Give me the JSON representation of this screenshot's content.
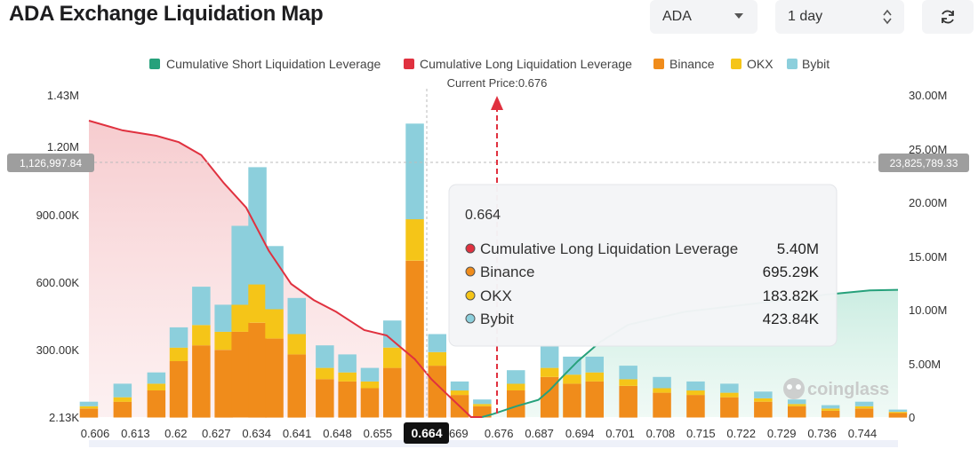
{
  "header": {
    "title": "ADA Exchange Liquidation Map",
    "coin_select": "ADA",
    "range_select": "1 day"
  },
  "colors": {
    "short": "#26a17b",
    "long": "#e0313f",
    "binance": "#f08c1b",
    "okx": "#f5c518",
    "bybit": "#8ccfdc"
  },
  "legend": {
    "short": "Cumulative Short Liquidation Leverage",
    "long": "Cumulative Long Liquidation Leverage",
    "binance": "Binance",
    "okx": "OKX",
    "bybit": "Bybit"
  },
  "current_price_label": "Current Price:0.676",
  "crosshair": {
    "left_value": "1,126,997.84",
    "right_value": "23,825,789.33",
    "x_value": "0.664"
  },
  "tooltip": {
    "title": "0.664",
    "rows": [
      {
        "label": "Cumulative Long Liquidation Leverage",
        "value": "5.40M",
        "color": "#e0313f"
      },
      {
        "label": "Binance",
        "value": "695.29K",
        "color": "#f08c1b"
      },
      {
        "label": "OKX",
        "value": "183.82K",
        "color": "#f5c518"
      },
      {
        "label": "Bybit",
        "value": "423.84K",
        "color": "#8ccfdc"
      }
    ]
  },
  "watermark": "coinglass",
  "chart_data": {
    "type": "bar",
    "x_range": [
      0.606,
      0.75
    ],
    "x_tick_labels": [
      "0.606",
      "0.613",
      "0.62",
      "0.627",
      "0.634",
      "0.641",
      "0.648",
      "0.655",
      "0.664",
      "669",
      "0.676",
      "0.687",
      "0.694",
      "0.701",
      "0.708",
      "0.715",
      "0.722",
      "0.729",
      "0.736",
      "0.744"
    ],
    "y_left_ticks": [
      "1.43M",
      "1.20M",
      "900.00K",
      "600.00K",
      "300.00K",
      "2.13K"
    ],
    "y_left_range": [
      2130,
      1430000
    ],
    "y_right_ticks": [
      "30.00M",
      "25.00M",
      "20.00M",
      "15.00M",
      "10.00M",
      "5.00M",
      "0"
    ],
    "y_right_range": [
      0,
      30000000
    ],
    "current_price": 0.676,
    "bar_stack_points": [
      {
        "x": 0.606,
        "binance": 40000,
        "okx": 10000,
        "bybit": 20000
      },
      {
        "x": 0.612,
        "binance": 70000,
        "okx": 20000,
        "bybit": 60000
      },
      {
        "x": 0.618,
        "binance": 120000,
        "okx": 30000,
        "bybit": 50000
      },
      {
        "x": 0.622,
        "binance": 250000,
        "okx": 60000,
        "bybit": 90000
      },
      {
        "x": 0.626,
        "binance": 320000,
        "okx": 90000,
        "bybit": 170000
      },
      {
        "x": 0.63,
        "binance": 300000,
        "okx": 80000,
        "bybit": 120000
      },
      {
        "x": 0.633,
        "binance": 380000,
        "okx": 120000,
        "bybit": 350000
      },
      {
        "x": 0.636,
        "binance": 420000,
        "okx": 170000,
        "bybit": 520000
      },
      {
        "x": 0.639,
        "binance": 350000,
        "okx": 130000,
        "bybit": 280000
      },
      {
        "x": 0.643,
        "binance": 280000,
        "okx": 90000,
        "bybit": 160000
      },
      {
        "x": 0.648,
        "binance": 170000,
        "okx": 50000,
        "bybit": 100000
      },
      {
        "x": 0.652,
        "binance": 160000,
        "okx": 40000,
        "bybit": 80000
      },
      {
        "x": 0.656,
        "binance": 130000,
        "okx": 30000,
        "bybit": 60000
      },
      {
        "x": 0.66,
        "binance": 220000,
        "okx": 90000,
        "bybit": 120000
      },
      {
        "x": 0.664,
        "binance": 695290,
        "okx": 183820,
        "bybit": 423840
      },
      {
        "x": 0.668,
        "binance": 230000,
        "okx": 60000,
        "bybit": 80000
      },
      {
        "x": 0.672,
        "binance": 100000,
        "okx": 20000,
        "bybit": 40000
      },
      {
        "x": 0.676,
        "binance": 50000,
        "okx": 10000,
        "bybit": 20000
      },
      {
        "x": 0.682,
        "binance": 120000,
        "okx": 30000,
        "bybit": 60000
      },
      {
        "x": 0.688,
        "binance": 180000,
        "okx": 40000,
        "bybit": 100000
      },
      {
        "x": 0.692,
        "binance": 150000,
        "okx": 40000,
        "bybit": 80000
      },
      {
        "x": 0.696,
        "binance": 160000,
        "okx": 40000,
        "bybit": 70000
      },
      {
        "x": 0.702,
        "binance": 140000,
        "okx": 30000,
        "bybit": 60000
      },
      {
        "x": 0.708,
        "binance": 110000,
        "okx": 20000,
        "bybit": 50000
      },
      {
        "x": 0.714,
        "binance": 100000,
        "okx": 20000,
        "bybit": 40000
      },
      {
        "x": 0.72,
        "binance": 90000,
        "okx": 20000,
        "bybit": 40000
      },
      {
        "x": 0.726,
        "binance": 70000,
        "okx": 15000,
        "bybit": 30000
      },
      {
        "x": 0.732,
        "binance": 50000,
        "okx": 10000,
        "bybit": 20000
      },
      {
        "x": 0.738,
        "binance": 30000,
        "okx": 10000,
        "bybit": 15000
      },
      {
        "x": 0.744,
        "binance": 40000,
        "okx": 10000,
        "bybit": 20000
      },
      {
        "x": 0.75,
        "binance": 20000,
        "okx": 5000,
        "bybit": 10000
      }
    ],
    "series": [
      {
        "name": "Cumulative Long Liquidation Leverage",
        "points": [
          [
            0.606,
            27600000
          ],
          [
            0.612,
            26700000
          ],
          [
            0.618,
            26200000
          ],
          [
            0.622,
            25600000
          ],
          [
            0.626,
            24400000
          ],
          [
            0.63,
            21800000
          ],
          [
            0.634,
            19500000
          ],
          [
            0.638,
            15500000
          ],
          [
            0.642,
            12400000
          ],
          [
            0.646,
            10900000
          ],
          [
            0.65,
            9800000
          ],
          [
            0.655,
            8100000
          ],
          [
            0.659,
            7600000
          ],
          [
            0.661,
            6700000
          ],
          [
            0.664,
            5400000
          ],
          [
            0.667,
            3500000
          ],
          [
            0.67,
            2000000
          ],
          [
            0.673,
            500000
          ],
          [
            0.674,
            0
          ],
          [
            0.676,
            0
          ]
        ]
      },
      {
        "name": "Cumulative Short Liquidation Leverage",
        "points": [
          [
            0.676,
            0
          ],
          [
            0.678,
            300000
          ],
          [
            0.682,
            1000000
          ],
          [
            0.686,
            1600000
          ],
          [
            0.688,
            2500000
          ],
          [
            0.69,
            3600000
          ],
          [
            0.693,
            5200000
          ],
          [
            0.697,
            7000000
          ],
          [
            0.702,
            8600000
          ],
          [
            0.712,
            9800000
          ],
          [
            0.725,
            10600000
          ],
          [
            0.737,
            11400000
          ],
          [
            0.745,
            11800000
          ],
          [
            0.75,
            11850000
          ]
        ]
      }
    ]
  }
}
